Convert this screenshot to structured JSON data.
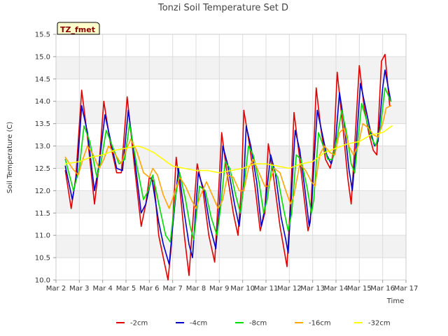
{
  "chart_data": {
    "type": "line",
    "title": "Tonzi Soil Temperature Set D",
    "xlabel": "Time",
    "ylabel": "Soil Temperature (C)",
    "badge": "TZ_fmet",
    "ylim": [
      10.0,
      15.5
    ],
    "yticks": [
      "10.0",
      "10.5",
      "11.0",
      "11.5",
      "12.0",
      "12.5",
      "13.0",
      "13.5",
      "14.0",
      "14.5",
      "15.0",
      "15.5"
    ],
    "xlim": [
      2,
      17
    ],
    "xticks": [
      "Mar 2",
      "Mar 3",
      "Mar 4",
      "Mar 5",
      "Mar 6",
      "Mar 7",
      "Mar 8",
      "Mar 9",
      "Mar 10",
      "Mar 11",
      "Mar 12",
      "Mar 13",
      "Mar 14",
      "Mar 15",
      "Mar 16",
      "Mar 17"
    ],
    "grid": true,
    "legend": "bottom",
    "series": [
      {
        "name": "-2cm",
        "color": "#e00000",
        "points": [
          [
            2.4,
            12.45
          ],
          [
            2.65,
            11.6
          ],
          [
            2.85,
            12.3
          ],
          [
            3.1,
            14.25
          ],
          [
            3.35,
            13.2
          ],
          [
            3.65,
            11.7
          ],
          [
            3.85,
            12.6
          ],
          [
            4.05,
            14.0
          ],
          [
            4.35,
            13.0
          ],
          [
            4.6,
            12.4
          ],
          [
            4.8,
            12.4
          ],
          [
            5.05,
            14.1
          ],
          [
            5.35,
            12.6
          ],
          [
            5.65,
            11.2
          ],
          [
            5.85,
            11.7
          ],
          [
            6.0,
            12.3
          ],
          [
            6.2,
            12.2
          ],
          [
            6.4,
            11.0
          ],
          [
            6.6,
            10.5
          ],
          [
            6.8,
            10.0
          ],
          [
            6.95,
            10.8
          ],
          [
            7.15,
            12.75
          ],
          [
            7.3,
            12.1
          ],
          [
            7.5,
            11.0
          ],
          [
            7.7,
            10.1
          ],
          [
            7.85,
            11.2
          ],
          [
            8.05,
            12.6
          ],
          [
            8.3,
            12.0
          ],
          [
            8.55,
            11.0
          ],
          [
            8.8,
            10.4
          ],
          [
            8.95,
            11.8
          ],
          [
            9.1,
            13.3
          ],
          [
            9.3,
            12.5
          ],
          [
            9.6,
            11.5
          ],
          [
            9.8,
            11.0
          ],
          [
            9.95,
            12.1
          ],
          [
            10.05,
            13.8
          ],
          [
            10.3,
            13.0
          ],
          [
            10.55,
            12.0
          ],
          [
            10.75,
            11.1
          ],
          [
            10.95,
            11.5
          ],
          [
            11.1,
            13.05
          ],
          [
            11.3,
            12.4
          ],
          [
            11.6,
            11.2
          ],
          [
            11.8,
            10.6
          ],
          [
            11.9,
            10.3
          ],
          [
            12.05,
            11.8
          ],
          [
            12.2,
            13.75
          ],
          [
            12.4,
            12.9
          ],
          [
            12.6,
            12.0
          ],
          [
            12.8,
            11.1
          ],
          [
            12.9,
            11.3
          ],
          [
            13.05,
            13.0
          ],
          [
            13.15,
            14.3
          ],
          [
            13.35,
            13.4
          ],
          [
            13.55,
            12.7
          ],
          [
            13.75,
            12.5
          ],
          [
            13.9,
            12.9
          ],
          [
            14.05,
            14.65
          ],
          [
            14.3,
            13.4
          ],
          [
            14.5,
            12.3
          ],
          [
            14.65,
            11.7
          ],
          [
            14.8,
            13.0
          ],
          [
            15.0,
            14.8
          ],
          [
            15.2,
            13.9
          ],
          [
            15.4,
            13.3
          ],
          [
            15.6,
            12.9
          ],
          [
            15.75,
            12.8
          ],
          [
            15.95,
            14.9
          ],
          [
            16.1,
            15.05
          ],
          [
            16.3,
            13.9
          ]
        ]
      },
      {
        "name": "-4cm",
        "color": "#0000cc",
        "points": [
          [
            2.4,
            12.55
          ],
          [
            2.7,
            11.8
          ],
          [
            2.9,
            12.4
          ],
          [
            3.1,
            13.9
          ],
          [
            3.35,
            13.3
          ],
          [
            3.65,
            12.0
          ],
          [
            3.85,
            12.6
          ],
          [
            4.1,
            13.7
          ],
          [
            4.35,
            13.1
          ],
          [
            4.6,
            12.5
          ],
          [
            4.85,
            12.45
          ],
          [
            5.1,
            13.8
          ],
          [
            5.35,
            12.8
          ],
          [
            5.65,
            11.5
          ],
          [
            5.85,
            11.7
          ],
          [
            6.1,
            12.3
          ],
          [
            6.4,
            11.3
          ],
          [
            6.6,
            10.8
          ],
          [
            6.85,
            10.35
          ],
          [
            7.0,
            11.2
          ],
          [
            7.25,
            12.5
          ],
          [
            7.5,
            11.5
          ],
          [
            7.7,
            10.8
          ],
          [
            7.85,
            10.5
          ],
          [
            8.1,
            12.4
          ],
          [
            8.35,
            12.0
          ],
          [
            8.6,
            11.2
          ],
          [
            8.85,
            10.7
          ],
          [
            9.0,
            11.6
          ],
          [
            9.15,
            13.0
          ],
          [
            9.35,
            12.6
          ],
          [
            9.65,
            11.7
          ],
          [
            9.85,
            11.2
          ],
          [
            10.05,
            12.2
          ],
          [
            10.15,
            13.45
          ],
          [
            10.35,
            13.0
          ],
          [
            10.6,
            12.2
          ],
          [
            10.8,
            11.2
          ],
          [
            10.95,
            11.6
          ],
          [
            11.2,
            12.8
          ],
          [
            11.4,
            12.4
          ],
          [
            11.65,
            11.4
          ],
          [
            11.85,
            10.9
          ],
          [
            11.95,
            10.6
          ],
          [
            12.1,
            12.0
          ],
          [
            12.25,
            13.35
          ],
          [
            12.45,
            12.9
          ],
          [
            12.65,
            12.1
          ],
          [
            12.85,
            11.2
          ],
          [
            12.95,
            11.6
          ],
          [
            13.1,
            13.0
          ],
          [
            13.2,
            13.8
          ],
          [
            13.4,
            13.3
          ],
          [
            13.6,
            12.8
          ],
          [
            13.8,
            12.6
          ],
          [
            13.95,
            12.9
          ],
          [
            14.15,
            14.2
          ],
          [
            14.35,
            13.5
          ],
          [
            14.55,
            12.5
          ],
          [
            14.7,
            12.0
          ],
          [
            14.85,
            12.9
          ],
          [
            15.05,
            14.4
          ],
          [
            15.25,
            13.9
          ],
          [
            15.45,
            13.4
          ],
          [
            15.65,
            13.0
          ],
          [
            15.8,
            13.1
          ],
          [
            16.0,
            14.3
          ],
          [
            16.1,
            14.7
          ],
          [
            16.35,
            14.0
          ]
        ]
      },
      {
        "name": "-8cm",
        "color": "#00dd00",
        "points": [
          [
            2.4,
            12.7
          ],
          [
            2.75,
            12.0
          ],
          [
            3.0,
            12.5
          ],
          [
            3.2,
            13.45
          ],
          [
            3.45,
            13.1
          ],
          [
            3.75,
            12.3
          ],
          [
            3.95,
            12.7
          ],
          [
            4.15,
            13.35
          ],
          [
            4.45,
            12.95
          ],
          [
            4.7,
            12.6
          ],
          [
            4.95,
            12.7
          ],
          [
            5.15,
            13.5
          ],
          [
            5.45,
            12.6
          ],
          [
            5.75,
            11.8
          ],
          [
            5.95,
            12.0
          ],
          [
            6.15,
            12.35
          ],
          [
            6.45,
            11.6
          ],
          [
            6.7,
            11.0
          ],
          [
            6.9,
            10.85
          ],
          [
            7.1,
            11.8
          ],
          [
            7.3,
            12.4
          ],
          [
            7.55,
            11.8
          ],
          [
            7.75,
            11.2
          ],
          [
            7.9,
            10.9
          ],
          [
            8.15,
            12.1
          ],
          [
            8.4,
            12.0
          ],
          [
            8.65,
            11.4
          ],
          [
            8.9,
            11.0
          ],
          [
            9.05,
            11.6
          ],
          [
            9.25,
            12.65
          ],
          [
            9.45,
            12.5
          ],
          [
            9.7,
            11.9
          ],
          [
            9.9,
            11.5
          ],
          [
            10.1,
            12.3
          ],
          [
            10.25,
            13.0
          ],
          [
            10.45,
            12.8
          ],
          [
            10.7,
            12.2
          ],
          [
            10.9,
            11.5
          ],
          [
            11.05,
            11.8
          ],
          [
            11.25,
            12.55
          ],
          [
            11.5,
            12.3
          ],
          [
            11.75,
            11.6
          ],
          [
            11.95,
            11.1
          ],
          [
            12.1,
            11.5
          ],
          [
            12.3,
            12.8
          ],
          [
            12.5,
            12.7
          ],
          [
            12.75,
            12.1
          ],
          [
            12.95,
            11.5
          ],
          [
            13.05,
            11.8
          ],
          [
            13.25,
            13.3
          ],
          [
            13.45,
            13.0
          ],
          [
            13.65,
            12.7
          ],
          [
            13.85,
            12.7
          ],
          [
            14.05,
            13.2
          ],
          [
            14.25,
            13.8
          ],
          [
            14.45,
            13.3
          ],
          [
            14.65,
            12.6
          ],
          [
            14.8,
            12.4
          ],
          [
            14.95,
            13.2
          ],
          [
            15.1,
            13.95
          ],
          [
            15.3,
            13.6
          ],
          [
            15.5,
            13.2
          ],
          [
            15.7,
            13.0
          ],
          [
            15.9,
            13.4
          ],
          [
            16.1,
            14.3
          ],
          [
            16.35,
            14.0
          ]
        ]
      },
      {
        "name": "-16cm",
        "color": "#ffa500",
        "points": [
          [
            2.4,
            12.75
          ],
          [
            2.7,
            12.5
          ],
          [
            2.95,
            12.35
          ],
          [
            3.15,
            12.7
          ],
          [
            3.35,
            13.0
          ],
          [
            3.6,
            12.8
          ],
          [
            3.85,
            12.5
          ],
          [
            4.05,
            12.7
          ],
          [
            4.25,
            13.0
          ],
          [
            4.55,
            12.8
          ],
          [
            4.8,
            12.6
          ],
          [
            5.0,
            12.9
          ],
          [
            5.2,
            13.15
          ],
          [
            5.45,
            12.9
          ],
          [
            5.75,
            12.4
          ],
          [
            6.0,
            12.3
          ],
          [
            6.15,
            12.5
          ],
          [
            6.35,
            12.35
          ],
          [
            6.6,
            11.9
          ],
          [
            6.85,
            11.6
          ],
          [
            7.05,
            11.9
          ],
          [
            7.3,
            12.3
          ],
          [
            7.55,
            12.1
          ],
          [
            7.8,
            11.8
          ],
          [
            8.0,
            11.6
          ],
          [
            8.2,
            11.9
          ],
          [
            8.45,
            12.2
          ],
          [
            8.7,
            11.9
          ],
          [
            8.95,
            11.6
          ],
          [
            9.15,
            11.8
          ],
          [
            9.35,
            12.35
          ],
          [
            9.6,
            12.3
          ],
          [
            9.85,
            12.0
          ],
          [
            10.05,
            12.0
          ],
          [
            10.25,
            12.5
          ],
          [
            10.45,
            12.7
          ],
          [
            10.7,
            12.4
          ],
          [
            10.95,
            12.1
          ],
          [
            11.1,
            12.1
          ],
          [
            11.35,
            12.5
          ],
          [
            11.6,
            12.4
          ],
          [
            11.85,
            12.0
          ],
          [
            12.05,
            11.7
          ],
          [
            12.2,
            11.9
          ],
          [
            12.45,
            12.6
          ],
          [
            12.7,
            12.45
          ],
          [
            12.95,
            12.2
          ],
          [
            13.1,
            12.1
          ],
          [
            13.3,
            12.8
          ],
          [
            13.5,
            13.0
          ],
          [
            13.75,
            12.85
          ],
          [
            13.95,
            12.8
          ],
          [
            14.15,
            13.3
          ],
          [
            14.35,
            13.4
          ],
          [
            14.55,
            13.0
          ],
          [
            14.75,
            12.8
          ],
          [
            14.95,
            13.0
          ],
          [
            15.15,
            13.5
          ],
          [
            15.4,
            13.4
          ],
          [
            15.6,
            13.25
          ],
          [
            15.8,
            13.2
          ],
          [
            16.0,
            13.5
          ],
          [
            16.15,
            13.85
          ],
          [
            16.35,
            13.9
          ]
        ]
      },
      {
        "name": "-32cm",
        "color": "#ffff00",
        "points": [
          [
            2.4,
            12.6
          ],
          [
            3.0,
            12.65
          ],
          [
            3.5,
            12.75
          ],
          [
            4.0,
            12.8
          ],
          [
            4.5,
            12.9
          ],
          [
            5.0,
            12.95
          ],
          [
            5.5,
            13.0
          ],
          [
            5.8,
            12.95
          ],
          [
            6.2,
            12.85
          ],
          [
            6.6,
            12.7
          ],
          [
            7.0,
            12.55
          ],
          [
            7.5,
            12.5
          ],
          [
            8.0,
            12.45
          ],
          [
            8.5,
            12.45
          ],
          [
            9.0,
            12.4
          ],
          [
            9.5,
            12.45
          ],
          [
            10.0,
            12.5
          ],
          [
            10.5,
            12.6
          ],
          [
            11.0,
            12.6
          ],
          [
            11.5,
            12.55
          ],
          [
            12.0,
            12.5
          ],
          [
            12.5,
            12.6
          ],
          [
            13.0,
            12.65
          ],
          [
            13.5,
            12.85
          ],
          [
            14.0,
            12.95
          ],
          [
            14.5,
            13.05
          ],
          [
            15.0,
            13.1
          ],
          [
            15.5,
            13.25
          ],
          [
            16.0,
            13.3
          ],
          [
            16.4,
            13.45
          ]
        ]
      }
    ]
  }
}
